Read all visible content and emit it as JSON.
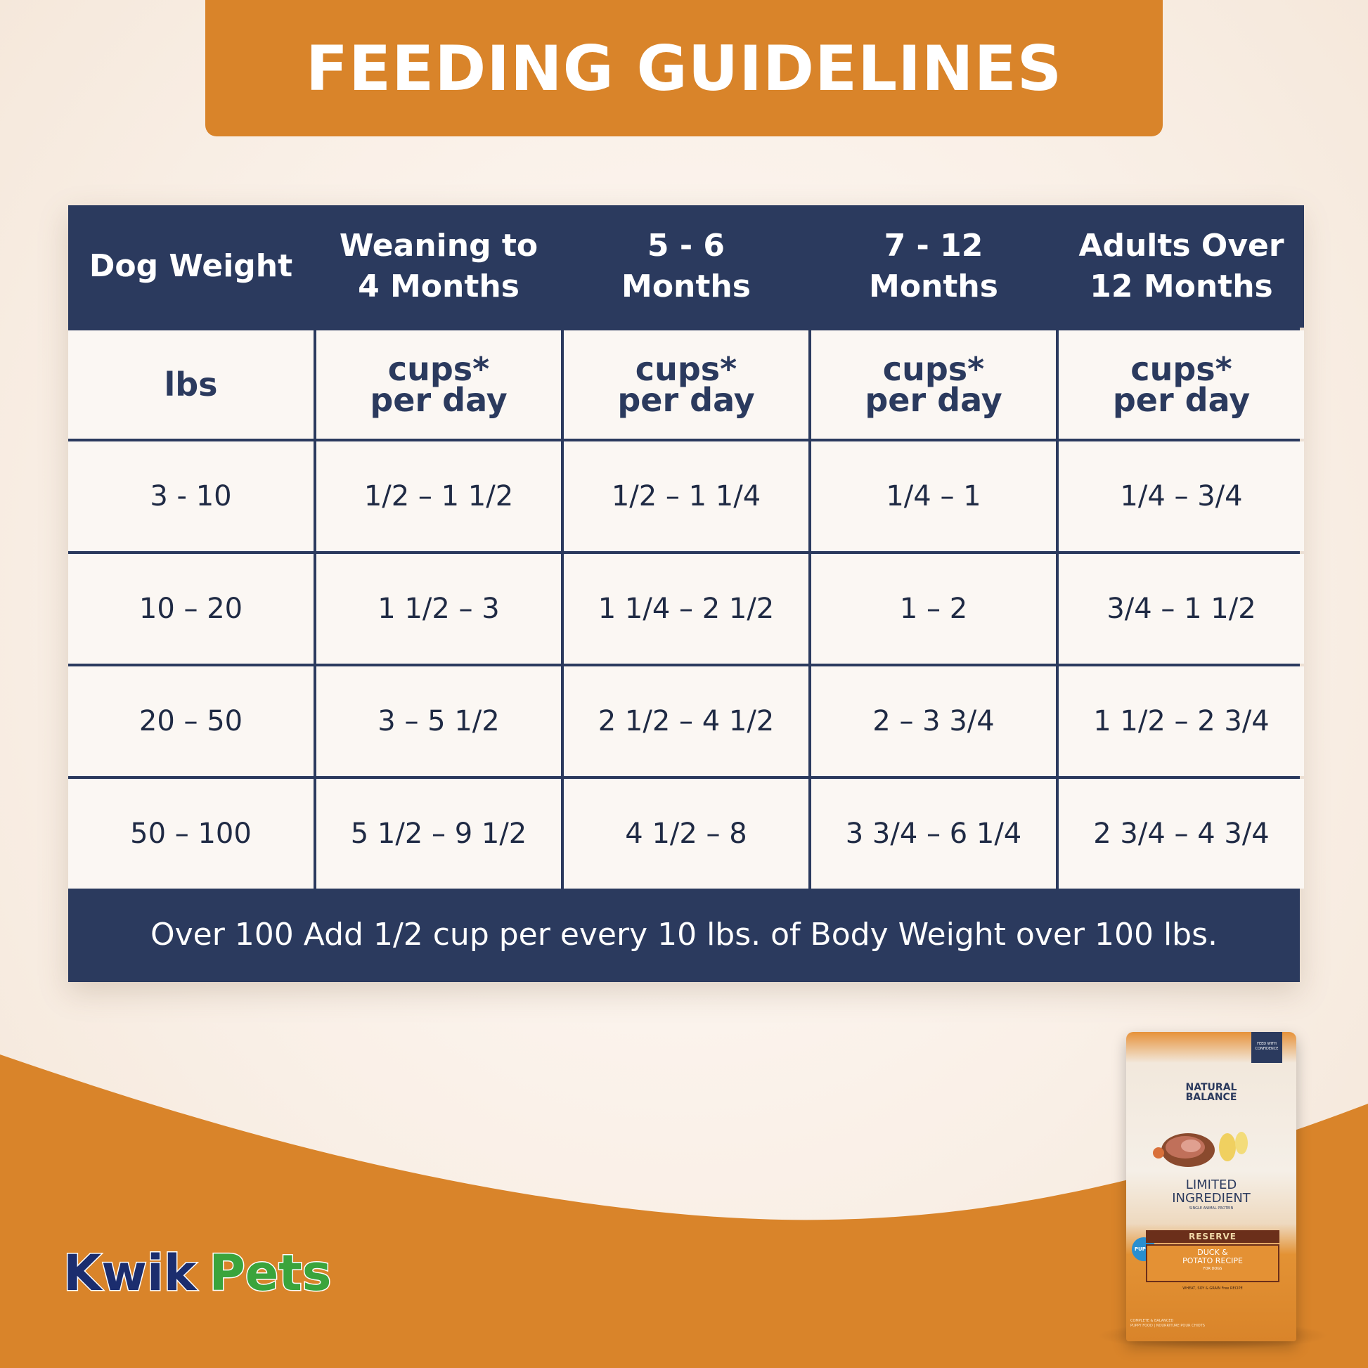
{
  "title": "FEEDING GUIDELINES",
  "table": {
    "headers": [
      [
        "Dog Weight"
      ],
      [
        "Weaning to",
        "4 Months"
      ],
      [
        "5 - 6",
        "Months"
      ],
      [
        "7 - 12",
        "Months"
      ],
      [
        "Adults Over",
        "12 Months"
      ]
    ],
    "units": [
      [
        "lbs"
      ],
      [
        "cups*",
        "per day"
      ],
      [
        "cups*",
        "per day"
      ],
      [
        "cups*",
        "per day"
      ],
      [
        "cups*",
        "per day"
      ]
    ],
    "rows": [
      [
        "3 - 10",
        "1/2 – 1 1/2",
        "1/2 – 1 1/4",
        "1/4 – 1",
        "1/4 – 3/4"
      ],
      [
        "10 – 20",
        "1 1/2 – 3",
        "1 1/4 – 2 1/2",
        "1 – 2",
        "3/4 – 1 1/2"
      ],
      [
        "20 – 50",
        "3 – 5 1/2",
        "2 1/2 – 4 1/2",
        "2 – 3 3/4",
        "1 1/2 – 2 3/4"
      ],
      [
        "50 – 100",
        "5 1/2 – 9 1/2",
        "4 1/2 – 8",
        "3 3/4 – 6 1/4",
        "2 3/4 – 4 3/4"
      ]
    ],
    "footer": "Over 100 Add 1/2 cup per every 10 lbs. of Body Weight over 100 lbs."
  },
  "logo": {
    "word1": "Kwik",
    "word2": "Pets"
  },
  "bag": {
    "tag_line1": "FEED WITH",
    "tag_line2": "CONFIDENCE",
    "brand_line1": "NATURAL",
    "brand_line2": "BALANCE",
    "lim_line1": "LIMITED",
    "lim_line2": "INGREDIENT",
    "single_animal": "SINGLE ANIMAL PROTEIN",
    "reserve": "RESERVE",
    "recipe_line1": "DUCK &",
    "recipe_line2": "POTATO RECIPE",
    "for_dogs": "FOR DOGS",
    "free_line": "WHEAT, SOY & GRAIN Free RECIPE",
    "puppy": "PUPPY",
    "small_line1": "COMPLETE & BALANCED",
    "small_line2": "PUPPY FOOD | NOURRITURE POUR CHIOTS"
  },
  "colors": {
    "orange": "#d9842a",
    "navy": "#2b3a5e",
    "cream": "#f9efe6",
    "cell": "#fbf7f3"
  }
}
